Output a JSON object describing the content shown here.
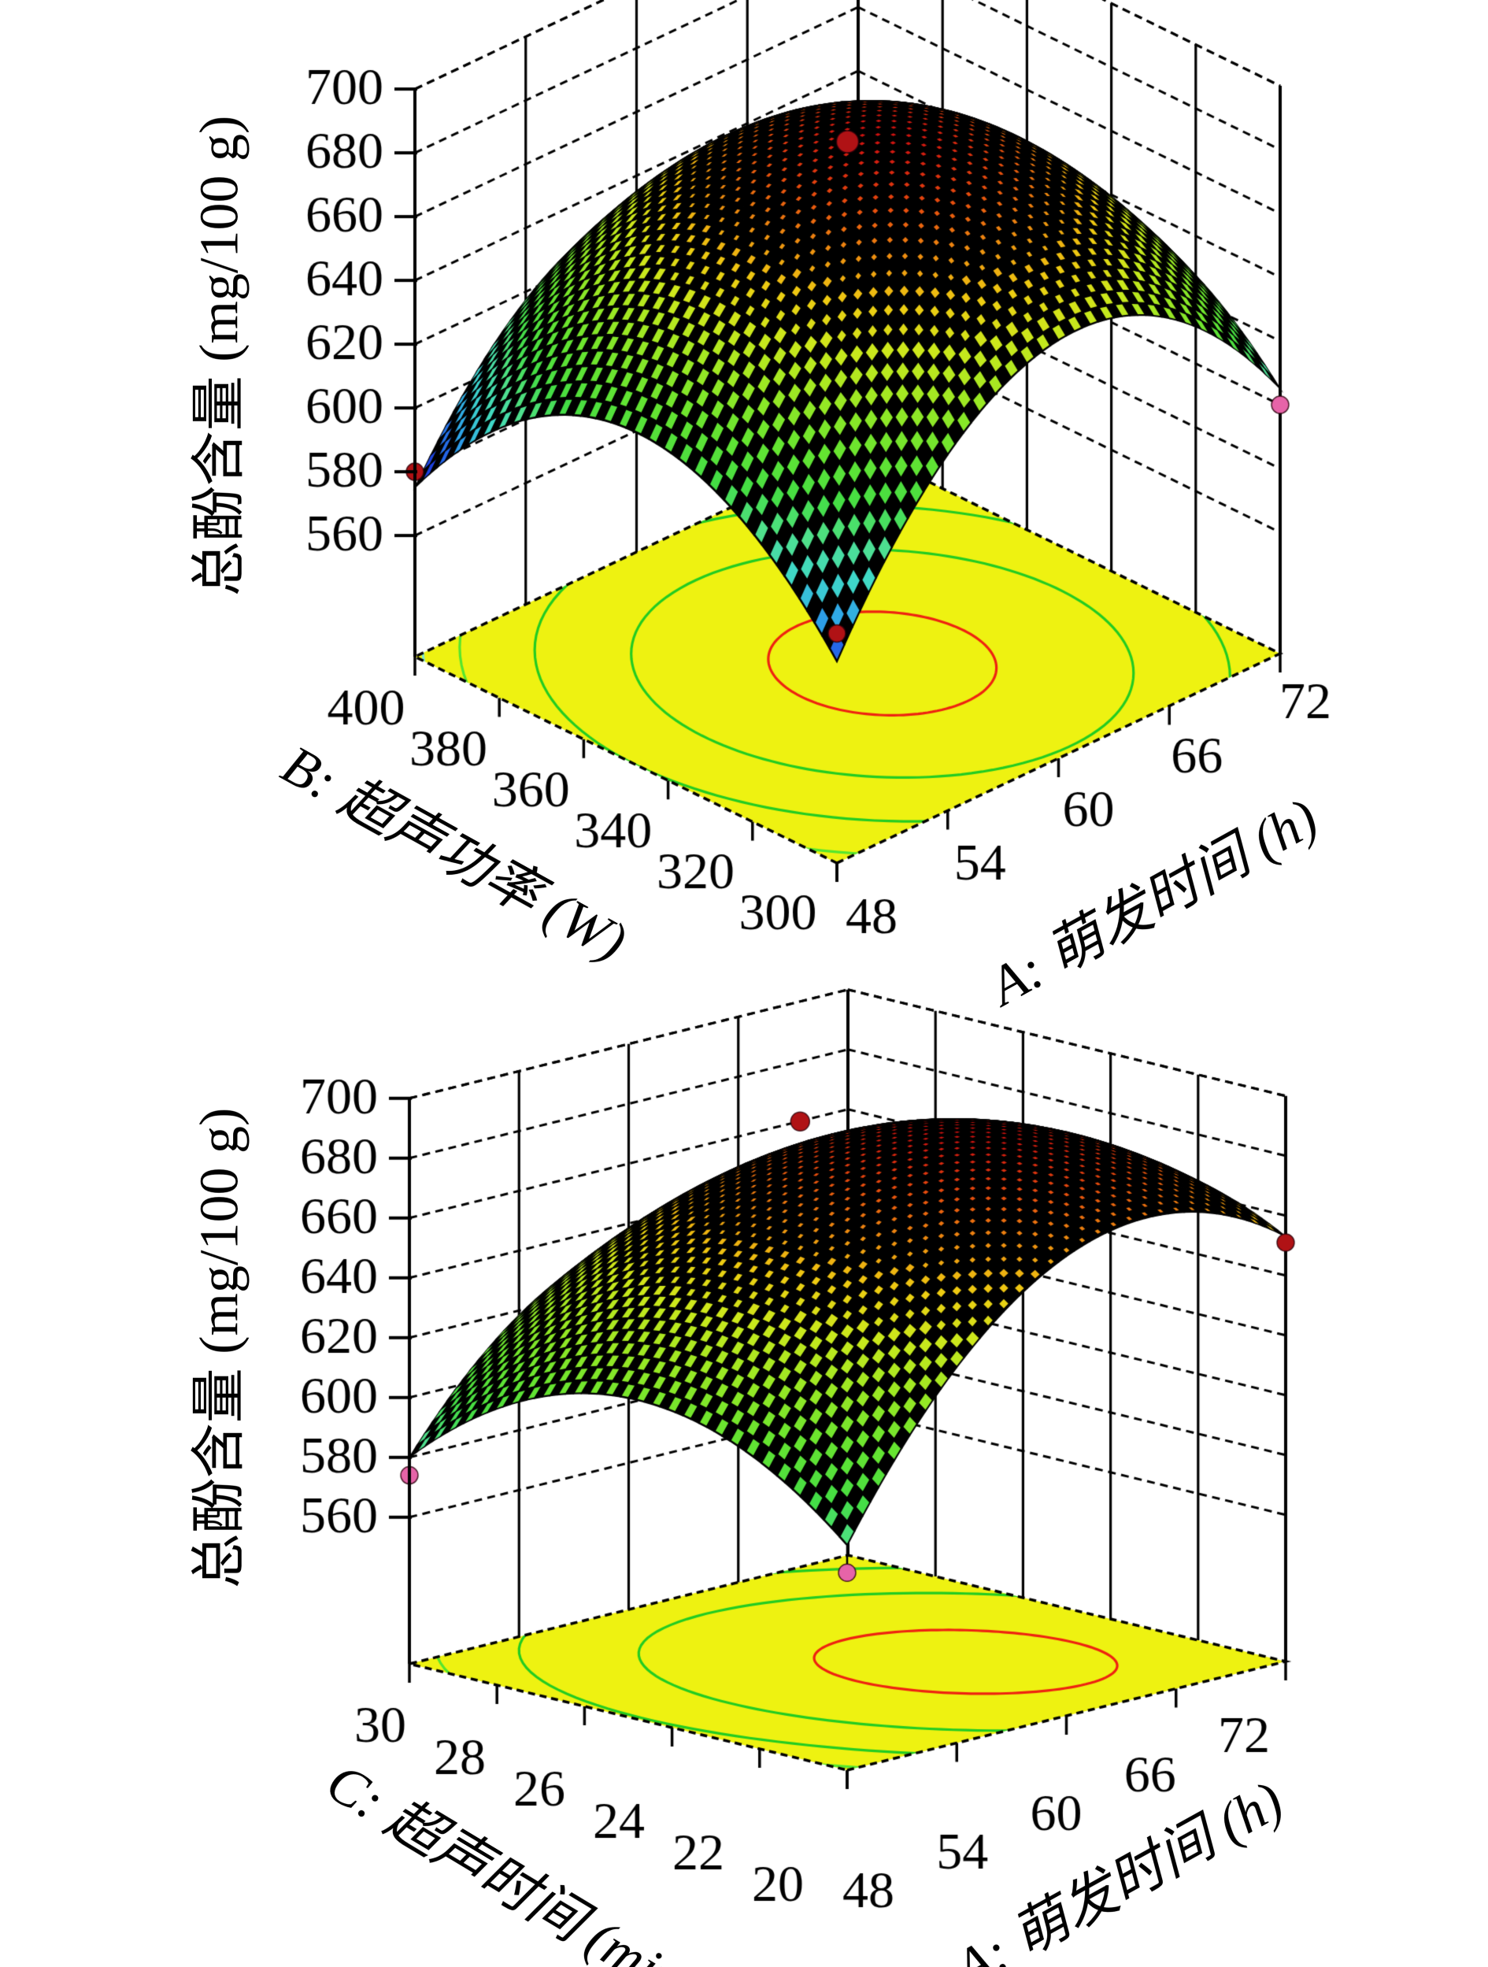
{
  "figure": {
    "background": "#ffffff",
    "tick_font_px": 66,
    "text_color": "#000000"
  },
  "chart_data": [
    {
      "type": "surface3d",
      "id": "plot1",
      "z_axis_label": "总酚含量 (mg/100 g)",
      "x_axis": {
        "label": "A: 萌发时间 (h)",
        "ticks": [
          48,
          54,
          60,
          66,
          72
        ],
        "range": [
          48,
          72
        ]
      },
      "y_axis": {
        "label": "B: 超声功率 (W)",
        "ticks": [
          300,
          320,
          340,
          360,
          380,
          400
        ],
        "range": [
          300,
          400
        ]
      },
      "z_ticks": [
        560,
        580,
        600,
        620,
        640,
        660,
        680,
        700
      ],
      "z_axis_range": [
        522,
        700
      ],
      "surface_model": {
        "desc": "z = z0 + p*u + q*v + r*u*v + s*u^2 + t*v^2 ; u=(A-60)/12, v=(B-350)/50",
        "z0": 688,
        "p": 4,
        "q": -11,
        "r": -6,
        "s": -58,
        "t": -46,
        "peak_z": 689,
        "corner_z": {
          "A48_B400": 575,
          "A48_B300": 585,
          "A72_B300": 605,
          "A72_B400": 571
        }
      },
      "color_domain": [
        578,
        689
      ],
      "floor_color": "#EEF211",
      "contour_levels": [
        {
          "z": 682,
          "color": "#EE2211"
        },
        {
          "z": 656,
          "color": "#22CC22"
        },
        {
          "z": 626,
          "color": "#22CC22"
        },
        {
          "z": 596,
          "color": "#55E62E"
        },
        {
          "z": 579,
          "color": "#80E8D0"
        }
      ],
      "design_points": [
        {
          "A": 60,
          "B": 350,
          "z": 683,
          "color": "#B01215",
          "r": 14,
          "stem": false
        },
        {
          "A": 48,
          "B": 400,
          "z": 580,
          "color": "#B01215",
          "r": 11,
          "stem": false
        },
        {
          "A": 72,
          "B": 300,
          "z": 600,
          "color": "#E664A8",
          "r": 11,
          "stem": false
        },
        {
          "A": 48,
          "B": 300,
          "z": 594,
          "color": "#B01215",
          "r": 11,
          "stem": false
        }
      ]
    },
    {
      "type": "surface3d",
      "id": "plot2",
      "z_axis_label": "总酚含量 (mg/100 g)",
      "x_axis": {
        "label": "A: 萌发时间 (h)",
        "ticks": [
          48,
          54,
          60,
          66,
          72
        ],
        "range": [
          48,
          72
        ]
      },
      "y_axis": {
        "label": "C: 超声时间 (min)",
        "ticks": [
          20,
          22,
          24,
          26,
          28,
          30
        ],
        "range": [
          20,
          30
        ]
      },
      "z_ticks": [
        560,
        580,
        600,
        620,
        640,
        660,
        680,
        700
      ],
      "z_axis_range": [
        511,
        700
      ],
      "surface_model": {
        "desc": "z = z0 + p*u + q*w + r*u*w + s*u^2 + t*w^2 ; u=(A-60)/12, w=(C-25)/5",
        "z0": 684,
        "p": 21.5,
        "q": -15,
        "r": -12,
        "s": -45,
        "t": -34.5,
        "peak_z": 689,
        "corner_z": {
          "A48_C30": 580,
          "A48_C20": 586,
          "A72_C20": 653,
          "A72_C30": 599
        }
      },
      "color_domain": [
        538,
        689
      ],
      "floor_color": "#EEF211",
      "contour_levels": [
        {
          "z": 681,
          "color": "#EE2211"
        },
        {
          "z": 652,
          "color": "#22CC22"
        },
        {
          "z": 620,
          "color": "#22CC22"
        },
        {
          "z": 592,
          "color": "#55E62E"
        },
        {
          "z": 581,
          "color": "#80E8D0"
        }
      ],
      "design_points": [
        {
          "A": 61,
          "B": 26.5,
          "z": 685,
          "color": "#B01215",
          "r": 12,
          "stem": false
        },
        {
          "A": 48,
          "B": 30,
          "z": 574,
          "color": "#E664A8",
          "r": 11,
          "stem": false
        },
        {
          "A": 72,
          "B": 20,
          "z": 651,
          "color": "#B01215",
          "r": 11,
          "stem": false
        },
        {
          "A": 48,
          "B": 20,
          "z": 577,
          "color": "#E664A8",
          "r": 11,
          "stem": true
        }
      ]
    }
  ],
  "palette": {
    "surface_colormap": [
      [
        0.0,
        "#1A2FD8"
      ],
      [
        0.08,
        "#2257E8"
      ],
      [
        0.16,
        "#2FA8E8"
      ],
      [
        0.24,
        "#3FD8C8"
      ],
      [
        0.32,
        "#4FE08A"
      ],
      [
        0.4,
        "#44DD44"
      ],
      [
        0.5,
        "#66E430"
      ],
      [
        0.6,
        "#9AE824"
      ],
      [
        0.7,
        "#CCE81C"
      ],
      [
        0.78,
        "#EECC12"
      ],
      [
        0.86,
        "#EE9010"
      ],
      [
        0.93,
        "#E8500E"
      ],
      [
        1.0,
        "#D01010"
      ]
    ],
    "grid_line": "#000000",
    "point_above_color": "#B01215",
    "point_below_color": "#E664A8"
  }
}
